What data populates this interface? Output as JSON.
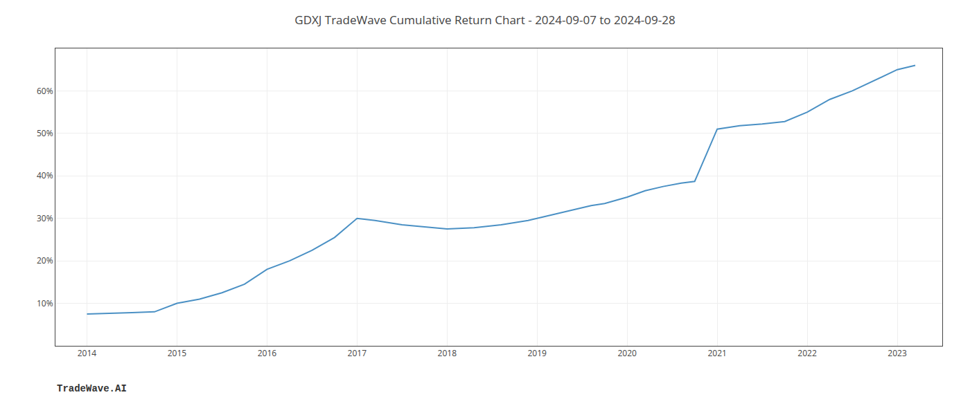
{
  "chart_data": {
    "type": "line",
    "title": "GDXJ TradeWave Cumulative Return Chart - 2024-09-07 to 2024-09-28",
    "annotations": [
      "TradeWave.AI"
    ],
    "x": [
      2014.0,
      2014.25,
      2014.5,
      2014.75,
      2015.0,
      2015.25,
      2015.5,
      2015.75,
      2016.0,
      2016.25,
      2016.5,
      2016.75,
      2017.0,
      2017.2,
      2017.5,
      2017.75,
      2018.0,
      2018.3,
      2018.6,
      2018.9,
      2019.0,
      2019.3,
      2019.6,
      2019.75,
      2020.0,
      2020.2,
      2020.4,
      2020.6,
      2020.75,
      2021.0,
      2021.25,
      2021.5,
      2021.75,
      2022.0,
      2022.25,
      2022.5,
      2022.75,
      2023.0,
      2023.2
    ],
    "values": [
      7.5,
      7.6,
      7.8,
      8.0,
      10.0,
      11.0,
      12.5,
      14.5,
      18.0,
      20.0,
      22.5,
      25.5,
      30.0,
      29.5,
      28.5,
      28.0,
      27.5,
      27.8,
      28.5,
      29.5,
      30.0,
      31.5,
      33.0,
      33.5,
      35.0,
      36.5,
      37.5,
      38.3,
      38.7,
      51.0,
      51.8,
      52.2,
      52.8,
      55.0,
      58.0,
      60.0,
      62.5,
      65.0,
      66.0
    ],
    "color": "#4a90c4",
    "xlim": [
      2013.65,
      2023.5
    ],
    "xticks": [
      2014,
      2015,
      2016,
      2017,
      2018,
      2019,
      2020,
      2021,
      2022,
      2023
    ],
    "ylim": [
      0,
      70
    ],
    "yticks": [
      {
        "value": 10,
        "label": "10%"
      },
      {
        "value": 20,
        "label": "20%"
      },
      {
        "value": 30,
        "label": "30%"
      },
      {
        "value": 40,
        "label": "40%"
      },
      {
        "value": 50,
        "label": "50%"
      },
      {
        "value": 60,
        "label": "60%"
      }
    ],
    "grid": true
  }
}
